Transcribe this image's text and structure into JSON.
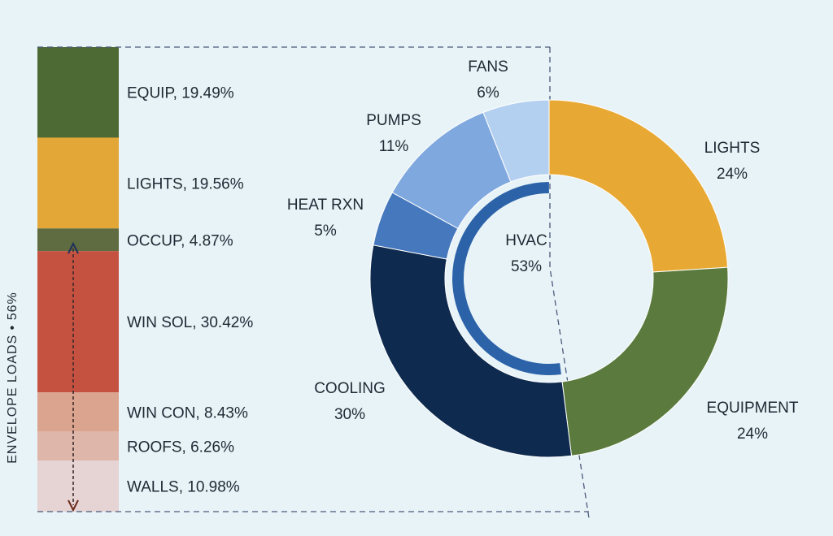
{
  "chart_data": [
    {
      "type": "stacked-bar",
      "orientation": "vertical",
      "bracket_label": "ENVELOPE LOADS • 56%",
      "segments": [
        {
          "name": "EQUIP",
          "label": "EQUIP, 19.49%",
          "value": 19.49,
          "color": "#4e6a34"
        },
        {
          "name": "LIGHTS",
          "label": "LIGHTS, 19.56%",
          "value": 19.56,
          "color": "#e2a736"
        },
        {
          "name": "OCCUP",
          "label": "OCCUP, 4.87%",
          "value": 4.87,
          "color": "#5f6b41"
        },
        {
          "name": "WIN SOL",
          "label": "WIN SOL, 30.42%",
          "value": 30.42,
          "color": "#c55141"
        },
        {
          "name": "WIN CON",
          "label": "WIN CON, 8.43%",
          "value": 8.43,
          "color": "#dba48e"
        },
        {
          "name": "ROOFS",
          "label": "ROOFS, 6.26%",
          "value": 6.26,
          "color": "#dfb7aa"
        },
        {
          "name": "WALLS",
          "label": "WALLS, 10.98%",
          "value": 10.98,
          "color": "#e6d3d3"
        }
      ]
    },
    {
      "type": "pie",
      "style": "donut",
      "center_label": [
        "HVAC",
        "53%"
      ],
      "slices": [
        {
          "name": "LIGHTS",
          "pct_label": "24%",
          "value": 24,
          "color": "#e8a934"
        },
        {
          "name": "EQUIPMENT",
          "pct_label": "24%",
          "value": 24,
          "color": "#5b7a3d"
        },
        {
          "name": "COOLING",
          "pct_label": "30%",
          "value": 30,
          "color": "#0e2a4e"
        },
        {
          "name": "HEAT RXN",
          "pct_label": "5%",
          "value": 5,
          "color": "#4578bd"
        },
        {
          "name": "PUMPS",
          "pct_label": "11%",
          "value": 11,
          "color": "#7fa8de"
        },
        {
          "name": "FANS",
          "pct_label": "6%",
          "value": 6,
          "color": "#b4d0f0"
        }
      ],
      "inner_ring_color": "#2c63a8"
    }
  ]
}
